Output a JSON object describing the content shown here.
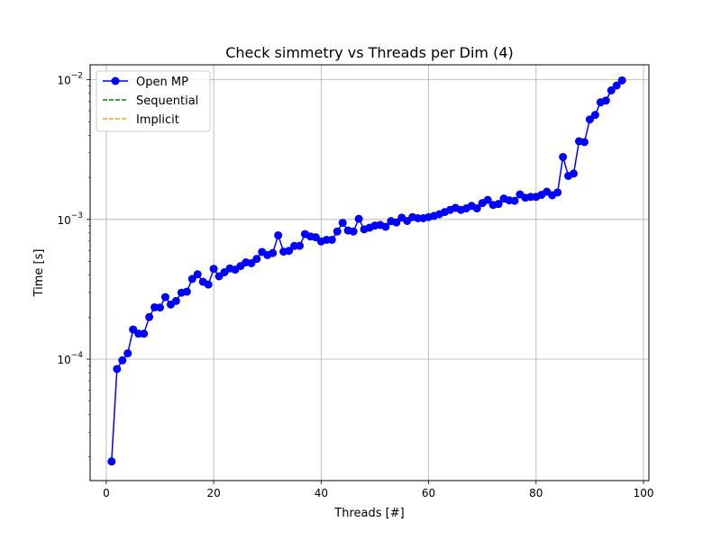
{
  "chart_data": {
    "type": "line",
    "title": "Check simmetry vs Threads per Dim (4)",
    "xlabel": "Threads [#]",
    "ylabel": "Time [s]",
    "xlim": [
      -3,
      101
    ],
    "ylim": [
      1.35e-05,
      0.0128
    ],
    "yscale": "log",
    "grid": true,
    "legend_position": "top-left",
    "x_ticks": [
      0,
      20,
      40,
      60,
      80,
      100
    ],
    "y_ticks": [
      {
        "value": 0.0001,
        "base": "10",
        "exp": "−4"
      },
      {
        "value": 0.001,
        "base": "10",
        "exp": "−3"
      },
      {
        "value": 0.01,
        "base": "10",
        "exp": "−2"
      }
    ],
    "series": [
      {
        "name": "Open MP",
        "color": "#0000ff",
        "style": "solid-marker",
        "x": [
          1,
          2,
          3,
          4,
          5,
          6,
          7,
          8,
          9,
          10,
          11,
          12,
          13,
          14,
          15,
          16,
          17,
          18,
          19,
          20,
          21,
          22,
          23,
          24,
          25,
          26,
          27,
          28,
          29,
          30,
          31,
          32,
          33,
          34,
          35,
          36,
          37,
          38,
          39,
          40,
          41,
          42,
          43,
          44,
          45,
          46,
          47,
          48,
          49,
          50,
          51,
          52,
          53,
          54,
          55,
          56,
          57,
          58,
          59,
          60,
          61,
          62,
          63,
          64,
          65,
          66,
          67,
          68,
          69,
          70,
          71,
          72,
          73,
          74,
          75,
          76,
          77,
          78,
          79,
          80,
          81,
          82,
          83,
          84,
          85,
          86,
          87,
          88,
          89,
          90,
          91,
          92,
          93,
          94,
          95,
          96
        ],
        "y": [
          1.85e-05,
          8.5e-05,
          9.8e-05,
          0.00011,
          0.000163,
          0.000152,
          0.000152,
          0.0002,
          0.000235,
          0.000234,
          0.000278,
          0.000246,
          0.000261,
          0.000299,
          0.000304,
          0.000375,
          0.000405,
          0.000358,
          0.000342,
          0.000443,
          0.000392,
          0.000419,
          0.000446,
          0.000437,
          0.000464,
          0.000493,
          0.000486,
          0.000522,
          0.000585,
          0.000556,
          0.000575,
          0.00077,
          0.000588,
          0.000596,
          0.000646,
          0.000648,
          0.000786,
          0.000756,
          0.000745,
          0.000696,
          0.000715,
          0.000715,
          0.00082,
          0.000946,
          0.000834,
          0.00082,
          0.00101,
          0.000849,
          0.000873,
          0.000904,
          0.000914,
          0.000886,
          0.000973,
          0.000952,
          0.00103,
          0.000976,
          0.00104,
          0.00102,
          0.00102,
          0.00104,
          0.00106,
          0.00109,
          0.00113,
          0.00117,
          0.00121,
          0.00117,
          0.0012,
          0.00125,
          0.0012,
          0.00131,
          0.00138,
          0.00127,
          0.00129,
          0.00141,
          0.00137,
          0.00136,
          0.00151,
          0.00143,
          0.00145,
          0.00145,
          0.0015,
          0.00158,
          0.00149,
          0.00156,
          0.0028,
          0.00205,
          0.00213,
          0.00363,
          0.00358,
          0.0052,
          0.0056,
          0.0069,
          0.0071,
          0.0084,
          0.0091,
          0.0099
        ]
      },
      {
        "name": "Sequential",
        "color": "#008000",
        "style": "dashed",
        "x": [],
        "y": []
      },
      {
        "name": "Implicit",
        "color": "#ffa500",
        "style": "dashed",
        "x": [],
        "y": []
      }
    ]
  }
}
